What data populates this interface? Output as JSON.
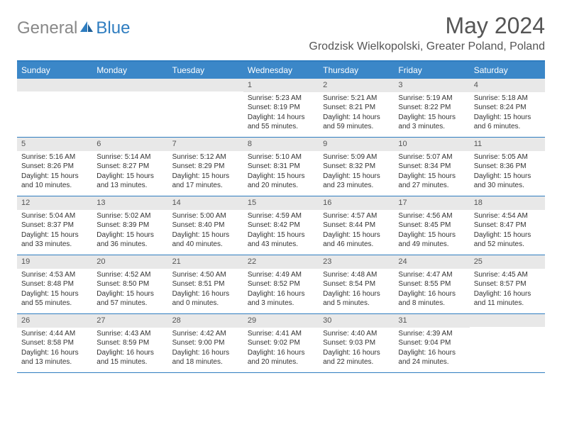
{
  "logo": {
    "general": "General",
    "blue": "Blue"
  },
  "title": "May 2024",
  "location": "Grodzisk Wielkopolski, Greater Poland, Poland",
  "colors": {
    "header_bar": "#3b87c8",
    "header_text": "#ffffff",
    "border": "#2f7dc0",
    "daynum_bg": "#e8e8e8",
    "body_text": "#333333",
    "title_text": "#555555",
    "logo_gray": "#888888",
    "logo_blue": "#2f7dc0"
  },
  "weekdays": [
    "Sunday",
    "Monday",
    "Tuesday",
    "Wednesday",
    "Thursday",
    "Friday",
    "Saturday"
  ],
  "weeks": [
    [
      null,
      null,
      null,
      {
        "n": "1",
        "sr": "Sunrise: 5:23 AM",
        "ss": "Sunset: 8:19 PM",
        "dl": "Daylight: 14 hours and 55 minutes."
      },
      {
        "n": "2",
        "sr": "Sunrise: 5:21 AM",
        "ss": "Sunset: 8:21 PM",
        "dl": "Daylight: 14 hours and 59 minutes."
      },
      {
        "n": "3",
        "sr": "Sunrise: 5:19 AM",
        "ss": "Sunset: 8:22 PM",
        "dl": "Daylight: 15 hours and 3 minutes."
      },
      {
        "n": "4",
        "sr": "Sunrise: 5:18 AM",
        "ss": "Sunset: 8:24 PM",
        "dl": "Daylight: 15 hours and 6 minutes."
      }
    ],
    [
      {
        "n": "5",
        "sr": "Sunrise: 5:16 AM",
        "ss": "Sunset: 8:26 PM",
        "dl": "Daylight: 15 hours and 10 minutes."
      },
      {
        "n": "6",
        "sr": "Sunrise: 5:14 AM",
        "ss": "Sunset: 8:27 PM",
        "dl": "Daylight: 15 hours and 13 minutes."
      },
      {
        "n": "7",
        "sr": "Sunrise: 5:12 AM",
        "ss": "Sunset: 8:29 PM",
        "dl": "Daylight: 15 hours and 17 minutes."
      },
      {
        "n": "8",
        "sr": "Sunrise: 5:10 AM",
        "ss": "Sunset: 8:31 PM",
        "dl": "Daylight: 15 hours and 20 minutes."
      },
      {
        "n": "9",
        "sr": "Sunrise: 5:09 AM",
        "ss": "Sunset: 8:32 PM",
        "dl": "Daylight: 15 hours and 23 minutes."
      },
      {
        "n": "10",
        "sr": "Sunrise: 5:07 AM",
        "ss": "Sunset: 8:34 PM",
        "dl": "Daylight: 15 hours and 27 minutes."
      },
      {
        "n": "11",
        "sr": "Sunrise: 5:05 AM",
        "ss": "Sunset: 8:36 PM",
        "dl": "Daylight: 15 hours and 30 minutes."
      }
    ],
    [
      {
        "n": "12",
        "sr": "Sunrise: 5:04 AM",
        "ss": "Sunset: 8:37 PM",
        "dl": "Daylight: 15 hours and 33 minutes."
      },
      {
        "n": "13",
        "sr": "Sunrise: 5:02 AM",
        "ss": "Sunset: 8:39 PM",
        "dl": "Daylight: 15 hours and 36 minutes."
      },
      {
        "n": "14",
        "sr": "Sunrise: 5:00 AM",
        "ss": "Sunset: 8:40 PM",
        "dl": "Daylight: 15 hours and 40 minutes."
      },
      {
        "n": "15",
        "sr": "Sunrise: 4:59 AM",
        "ss": "Sunset: 8:42 PM",
        "dl": "Daylight: 15 hours and 43 minutes."
      },
      {
        "n": "16",
        "sr": "Sunrise: 4:57 AM",
        "ss": "Sunset: 8:44 PM",
        "dl": "Daylight: 15 hours and 46 minutes."
      },
      {
        "n": "17",
        "sr": "Sunrise: 4:56 AM",
        "ss": "Sunset: 8:45 PM",
        "dl": "Daylight: 15 hours and 49 minutes."
      },
      {
        "n": "18",
        "sr": "Sunrise: 4:54 AM",
        "ss": "Sunset: 8:47 PM",
        "dl": "Daylight: 15 hours and 52 minutes."
      }
    ],
    [
      {
        "n": "19",
        "sr": "Sunrise: 4:53 AM",
        "ss": "Sunset: 8:48 PM",
        "dl": "Daylight: 15 hours and 55 minutes."
      },
      {
        "n": "20",
        "sr": "Sunrise: 4:52 AM",
        "ss": "Sunset: 8:50 PM",
        "dl": "Daylight: 15 hours and 57 minutes."
      },
      {
        "n": "21",
        "sr": "Sunrise: 4:50 AM",
        "ss": "Sunset: 8:51 PM",
        "dl": "Daylight: 16 hours and 0 minutes."
      },
      {
        "n": "22",
        "sr": "Sunrise: 4:49 AM",
        "ss": "Sunset: 8:52 PM",
        "dl": "Daylight: 16 hours and 3 minutes."
      },
      {
        "n": "23",
        "sr": "Sunrise: 4:48 AM",
        "ss": "Sunset: 8:54 PM",
        "dl": "Daylight: 16 hours and 5 minutes."
      },
      {
        "n": "24",
        "sr": "Sunrise: 4:47 AM",
        "ss": "Sunset: 8:55 PM",
        "dl": "Daylight: 16 hours and 8 minutes."
      },
      {
        "n": "25",
        "sr": "Sunrise: 4:45 AM",
        "ss": "Sunset: 8:57 PM",
        "dl": "Daylight: 16 hours and 11 minutes."
      }
    ],
    [
      {
        "n": "26",
        "sr": "Sunrise: 4:44 AM",
        "ss": "Sunset: 8:58 PM",
        "dl": "Daylight: 16 hours and 13 minutes."
      },
      {
        "n": "27",
        "sr": "Sunrise: 4:43 AM",
        "ss": "Sunset: 8:59 PM",
        "dl": "Daylight: 16 hours and 15 minutes."
      },
      {
        "n": "28",
        "sr": "Sunrise: 4:42 AM",
        "ss": "Sunset: 9:00 PM",
        "dl": "Daylight: 16 hours and 18 minutes."
      },
      {
        "n": "29",
        "sr": "Sunrise: 4:41 AM",
        "ss": "Sunset: 9:02 PM",
        "dl": "Daylight: 16 hours and 20 minutes."
      },
      {
        "n": "30",
        "sr": "Sunrise: 4:40 AM",
        "ss": "Sunset: 9:03 PM",
        "dl": "Daylight: 16 hours and 22 minutes."
      },
      {
        "n": "31",
        "sr": "Sunrise: 4:39 AM",
        "ss": "Sunset: 9:04 PM",
        "dl": "Daylight: 16 hours and 24 minutes."
      },
      null
    ]
  ]
}
